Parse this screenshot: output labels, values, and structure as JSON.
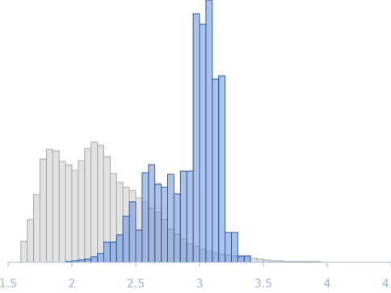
{
  "chart_data": {
    "type": "histogram",
    "xlim": [
      1.5,
      4.5
    ],
    "xticks": [
      1.5,
      2,
      2.5,
      3,
      3.5,
      4,
      4.5
    ],
    "ylim": [
      0,
      325
    ],
    "series": [
      {
        "color": "#e2e2e2",
        "edge_color": "#a8a8a8",
        "bins": [
          1.6,
          1.65,
          1.7,
          1.75,
          1.8,
          1.85,
          1.9,
          1.95,
          2.0,
          2.05,
          2.1,
          2.15,
          2.2,
          2.25,
          2.3,
          2.35,
          2.4,
          2.45,
          2.5,
          2.55,
          2.6,
          2.65,
          2.7,
          2.75,
          2.8,
          2.85,
          2.9,
          2.95,
          3.0,
          3.05,
          3.1,
          3.15,
          3.2,
          3.25,
          3.3,
          3.35,
          3.4,
          3.45,
          3.5,
          3.55,
          3.6,
          3.65,
          3.7,
          3.75,
          3.8,
          3.85,
          3.9,
          3.95
        ],
        "values": [
          26,
          53,
          84,
          128,
          140,
          138,
          125,
          121,
          114,
          126,
          141,
          149,
          145,
          131,
          110,
          99,
          93,
          89,
          80,
          75,
          67,
          62,
          53,
          41,
          35,
          29,
          23,
          20,
          16,
          14,
          12,
          10,
          9,
          8,
          7,
          6,
          5,
          4,
          3,
          2,
          2,
          1,
          1,
          1,
          1,
          1,
          1
        ]
      },
      {
        "color": "#6b8fd2",
        "edge_color": "#2e5bb0",
        "bins": [
          1.95,
          2.0,
          2.05,
          2.1,
          2.15,
          2.2,
          2.25,
          2.3,
          2.35,
          2.4,
          2.45,
          2.5,
          2.55,
          2.6,
          2.65,
          2.7,
          2.75,
          2.8,
          2.85,
          2.9,
          2.95,
          3.0,
          3.05,
          3.1,
          3.15,
          3.2,
          3.25,
          3.3,
          3.35,
          3.4
        ],
        "values": [
          1,
          2,
          3,
          4,
          7,
          11,
          25,
          25,
          34,
          57,
          75,
          40,
          111,
          121,
          97,
          93,
          109,
          85,
          113,
          113,
          308,
          295,
          325,
          227,
          231,
          37,
          37,
          8,
          8
        ]
      }
    ]
  }
}
